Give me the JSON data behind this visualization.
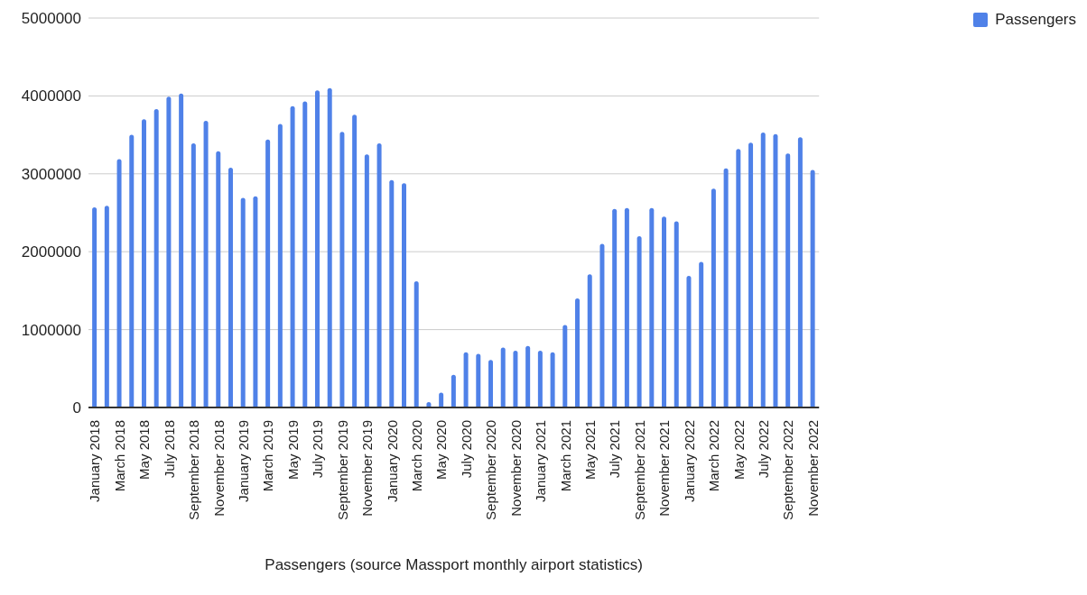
{
  "chart_data": {
    "type": "bar",
    "xlabel": "Passengers (source Massport monthly airport statistics)",
    "categories": [
      "January 2018",
      null,
      "March 2018",
      null,
      "May 2018",
      null,
      "July 2018",
      null,
      "September 2018",
      null,
      "November 2018",
      null,
      "January 2019",
      null,
      "March 2019",
      null,
      "May 2019",
      null,
      "July 2019",
      null,
      "September 2019",
      null,
      "November 2019",
      null,
      "January 2020",
      null,
      "March 2020",
      null,
      "May 2020",
      null,
      "July 2020",
      null,
      "September 2020",
      null,
      "November 2020",
      null,
      "January 2021",
      null,
      "March 2021",
      null,
      "May 2021",
      null,
      "July 2021",
      null,
      "September 2021",
      null,
      "November 2021",
      null,
      "January 2022",
      null,
      "March 2022",
      null,
      "May 2022",
      null,
      "July 2022",
      null,
      "September 2022",
      null,
      "November 2022"
    ],
    "series": [
      {
        "name": "Passengers",
        "color": "#4f81e8",
        "values": [
          2570000,
          2590000,
          3190000,
          3500000,
          3700000,
          3830000,
          3990000,
          4030000,
          3390000,
          3680000,
          3290000,
          3080000,
          2690000,
          2710000,
          3440000,
          3640000,
          3870000,
          3930000,
          4070000,
          4100000,
          3540000,
          3760000,
          3250000,
          3390000,
          2920000,
          2880000,
          1620000,
          70000,
          190000,
          420000,
          710000,
          690000,
          610000,
          770000,
          730000,
          790000,
          730000,
          710000,
          1060000,
          1400000,
          1710000,
          2100000,
          2550000,
          2560000,
          2200000,
          2560000,
          2450000,
          2390000,
          1690000,
          1870000,
          2810000,
          3070000,
          3320000,
          3400000,
          3530000,
          3510000,
          3260000,
          3470000,
          3050000
        ]
      }
    ],
    "ylim": [
      0,
      5000000
    ],
    "yticks": [
      0,
      1000000,
      2000000,
      3000000,
      4000000,
      5000000
    ],
    "grid": "y",
    "legend": "top right"
  }
}
